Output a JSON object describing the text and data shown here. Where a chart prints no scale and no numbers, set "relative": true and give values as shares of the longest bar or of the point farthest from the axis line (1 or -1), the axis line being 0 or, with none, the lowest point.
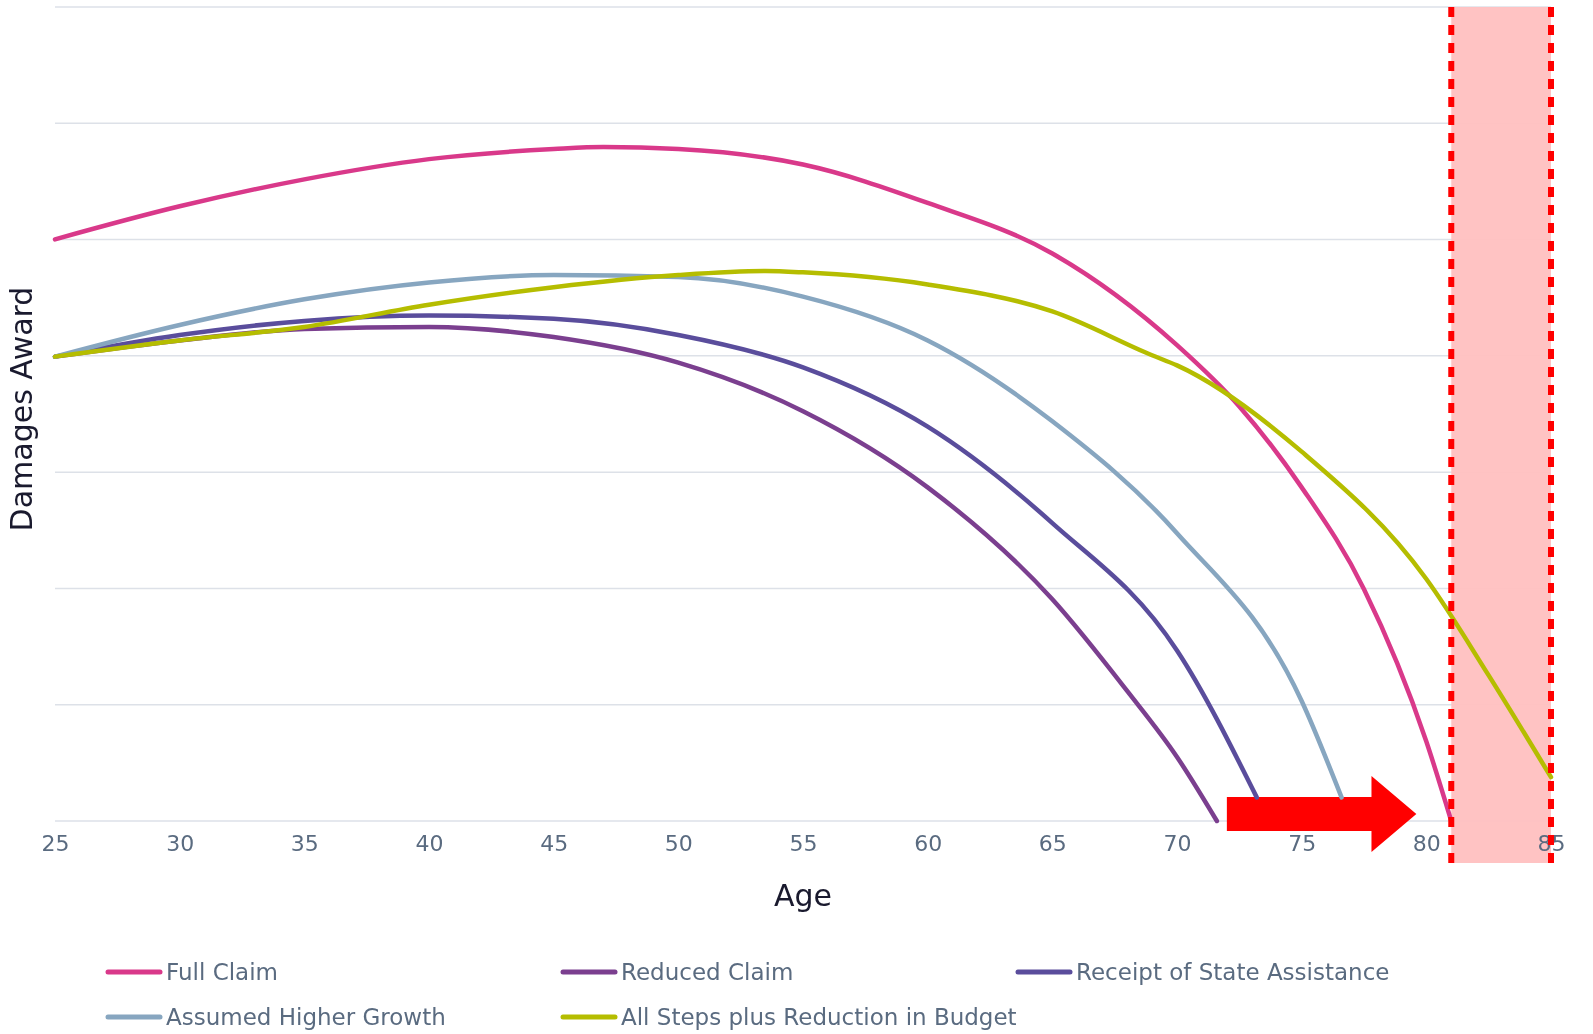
{
  "chart_data": {
    "type": "line",
    "xlabel": "Age",
    "ylabel": "Damages Award",
    "relative": true,
    "xlim": [
      25,
      85
    ],
    "xticks": [
      25,
      30,
      35,
      40,
      45,
      50,
      55,
      60,
      65,
      70,
      75,
      80,
      85
    ],
    "grid": "y",
    "legend": "bottom",
    "line_style": "solid",
    "marker": "none",
    "series": [
      {
        "name": "Full Claim",
        "color": "#d9398a",
        "x": [
          25,
          30,
          35,
          40,
          45,
          47,
          50,
          55,
          60,
          65,
          70,
          72.5,
          75,
          77.5,
          80,
          81
        ],
        "values": [
          0.863,
          0.912,
          0.952,
          0.982,
          0.997,
          1,
          0.997,
          0.974,
          0.917,
          0.842,
          0.706,
          0.615,
          0.495,
          0.344,
          0.118,
          0
        ]
      },
      {
        "name": "Reduced Claim",
        "color": "#7b3f8f",
        "x": [
          25,
          30,
          35,
          40,
          45,
          50,
          55,
          60,
          65,
          68,
          70,
          71.6
        ],
        "values": [
          0.689,
          0.713,
          0.73,
          0.733,
          0.718,
          0.68,
          0.608,
          0.495,
          0.329,
          0.193,
          0.095,
          0
        ]
      },
      {
        "name": "Receipt of State Assistance",
        "color": "#5a4d9c",
        "x": [
          25,
          30,
          35,
          40,
          45,
          50,
          55,
          60,
          65,
          70,
          73.2
        ],
        "values": [
          0.689,
          0.721,
          0.742,
          0.75,
          0.745,
          0.721,
          0.673,
          0.585,
          0.442,
          0.253,
          0.035
        ]
      },
      {
        "name": "Assumed Higher Growth",
        "color": "#87a6c0",
        "x": [
          25,
          30,
          35,
          40,
          45,
          50,
          55,
          60,
          65,
          70,
          75,
          76.6
        ],
        "values": [
          0.689,
          0.736,
          0.774,
          0.799,
          0.81,
          0.807,
          0.778,
          0.713,
          0.593,
          0.427,
          0.178,
          0.035
        ]
      },
      {
        "name": "All Steps plus Reduction in Budget",
        "color": "#b5bd00",
        "x": [
          25,
          30,
          35,
          40,
          45,
          50,
          53.5,
          55,
          60,
          65,
          69,
          70,
          75,
          80,
          82.5,
          85
        ],
        "values": [
          0.689,
          0.713,
          0.733,
          0.766,
          0.792,
          0.81,
          0.816,
          0.814,
          0.796,
          0.756,
          0.691,
          0.676,
          0.548,
          0.359,
          0.216,
          0.065
        ]
      }
    ],
    "bands": [
      {
        "axis": "x",
        "from": 81,
        "to": 85,
        "color": "#ffc0c0"
      }
    ],
    "ref_lines": [
      {
        "axis": "x",
        "value": 81,
        "color": "#ff0000",
        "line_style": "dashed"
      },
      {
        "axis": "x",
        "value": 85,
        "color": "#ff0000",
        "line_style": "dashed"
      }
    ]
  }
}
